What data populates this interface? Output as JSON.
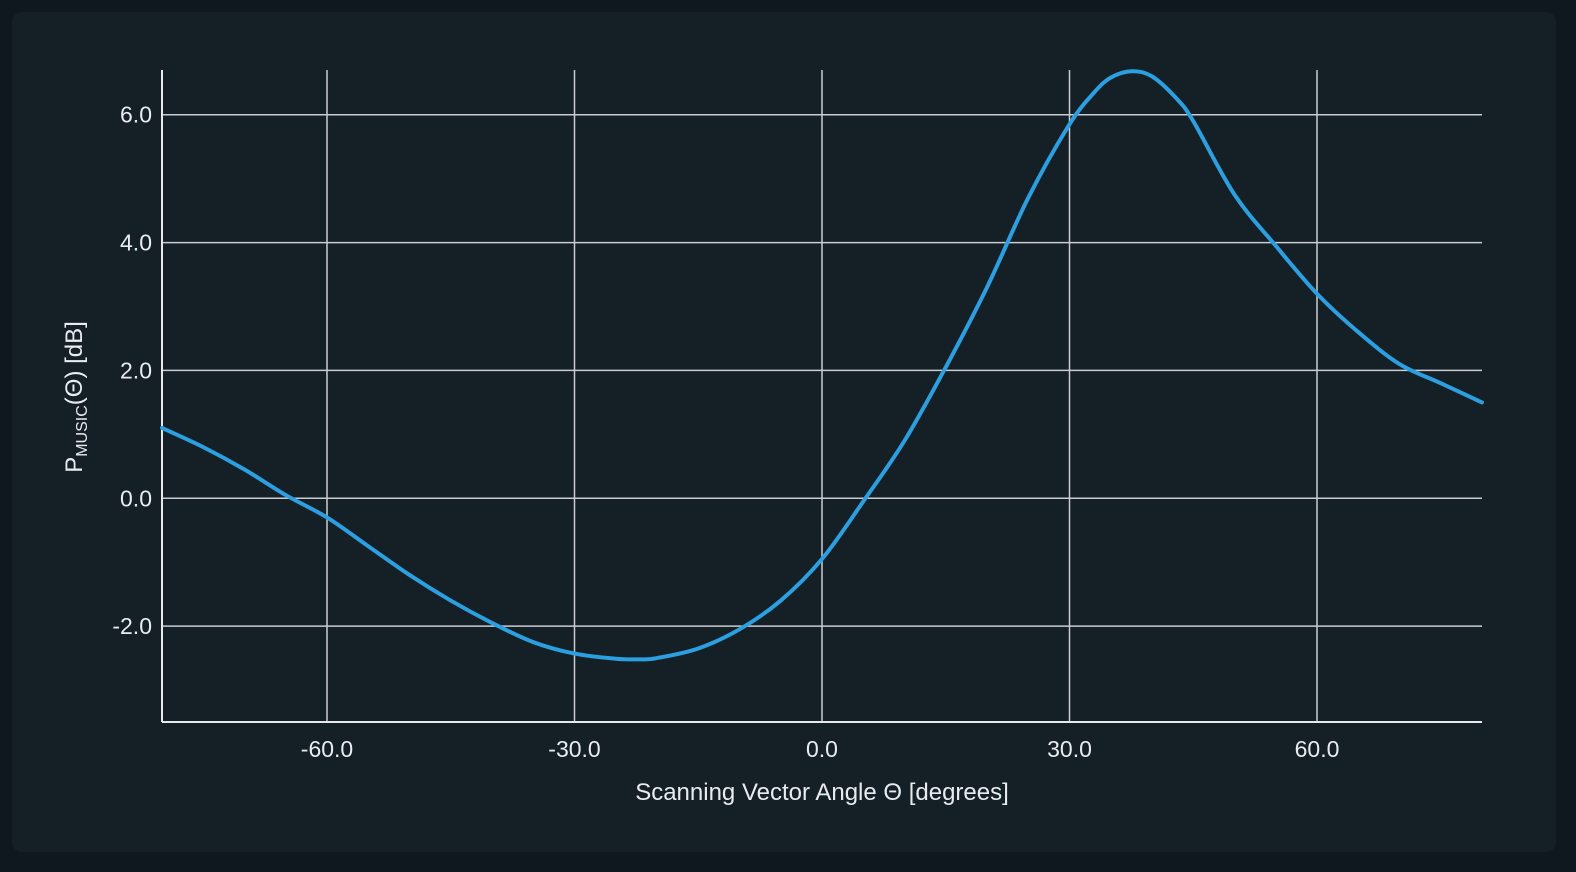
{
  "chart_data": {
    "type": "line",
    "title": "",
    "xlabel": "Scanning Vector Angle Θ [degrees]",
    "ylabel": {
      "main": "P",
      "sub": "MUSIC",
      "rest": "(Θ)  [dB]"
    },
    "xlim": [
      -80,
      80
    ],
    "ylim": [
      -3.5,
      6.7
    ],
    "x_ticks": [
      -60,
      -30,
      0,
      30,
      60
    ],
    "x_tick_labels": [
      "-60.0",
      "-30.0",
      "0.0",
      "30.0",
      "60.0"
    ],
    "y_ticks": [
      -2,
      0,
      2,
      4,
      6
    ],
    "y_tick_labels": [
      "-2.0",
      "0.0",
      "2.0",
      "4.0",
      "6.0"
    ],
    "grid": true,
    "series": [
      {
        "color": "#2b9fe0",
        "x": [
          -80,
          -75,
          -70,
          -65,
          -60,
          -55,
          -50,
          -45,
          -40,
          -35,
          -30,
          -25,
          -22,
          -20,
          -15,
          -10,
          -5,
          0,
          5,
          10,
          15,
          20,
          25,
          30,
          33,
          35,
          37.5,
          40,
          43,
          45,
          50,
          55,
          60,
          65,
          70,
          75,
          80
        ],
        "y": [
          1.1,
          0.8,
          0.45,
          0.05,
          -0.3,
          -0.75,
          -1.2,
          -1.6,
          -1.95,
          -2.25,
          -2.43,
          -2.51,
          -2.52,
          -2.5,
          -2.35,
          -2.05,
          -1.6,
          -0.95,
          -0.05,
          0.9,
          2.05,
          3.3,
          4.7,
          5.85,
          6.35,
          6.58,
          6.68,
          6.6,
          6.25,
          5.9,
          4.75,
          3.95,
          3.2,
          2.6,
          2.1,
          1.8,
          1.5
        ]
      }
    ]
  }
}
